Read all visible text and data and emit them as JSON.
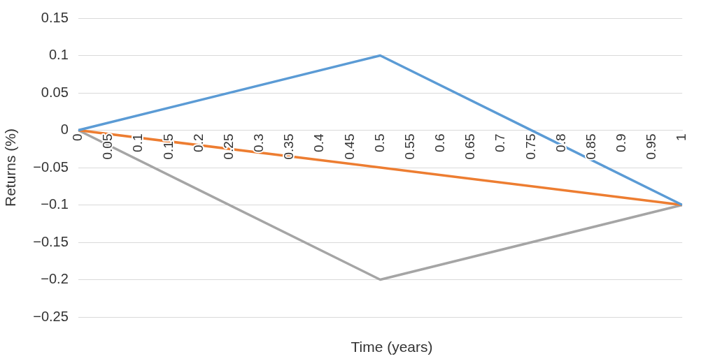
{
  "chart_data": {
    "type": "line",
    "xlabel": "Time (years)",
    "ylabel": "Returns (%)",
    "xlim": [
      0,
      1
    ],
    "xticks": [
      0,
      0.05,
      0.1,
      0.15,
      0.2,
      0.25,
      0.3,
      0.35,
      0.4,
      0.45,
      0.5,
      0.55,
      0.6,
      0.65,
      0.7,
      0.75,
      0.8,
      0.85,
      0.9,
      0.95,
      1
    ],
    "ylim": [
      -0.25,
      0.15
    ],
    "yticks": [
      -0.25,
      -0.2,
      -0.15,
      -0.1,
      -0.05,
      0,
      0.05,
      0.1,
      0.15
    ],
    "grid": "y",
    "legend": false,
    "marker": "none",
    "line_style": "solid",
    "series": [
      {
        "color": "#5b9bd5",
        "x": [
          0,
          0.5,
          1
        ],
        "values": [
          0,
          0.1,
          -0.1
        ]
      },
      {
        "color": "#ed7d31",
        "x": [
          0,
          1
        ],
        "values": [
          0,
          -0.1
        ]
      },
      {
        "color": "#a5a5a5",
        "x": [
          0,
          0.5,
          1
        ],
        "values": [
          0,
          -0.2,
          -0.1
        ]
      }
    ]
  }
}
